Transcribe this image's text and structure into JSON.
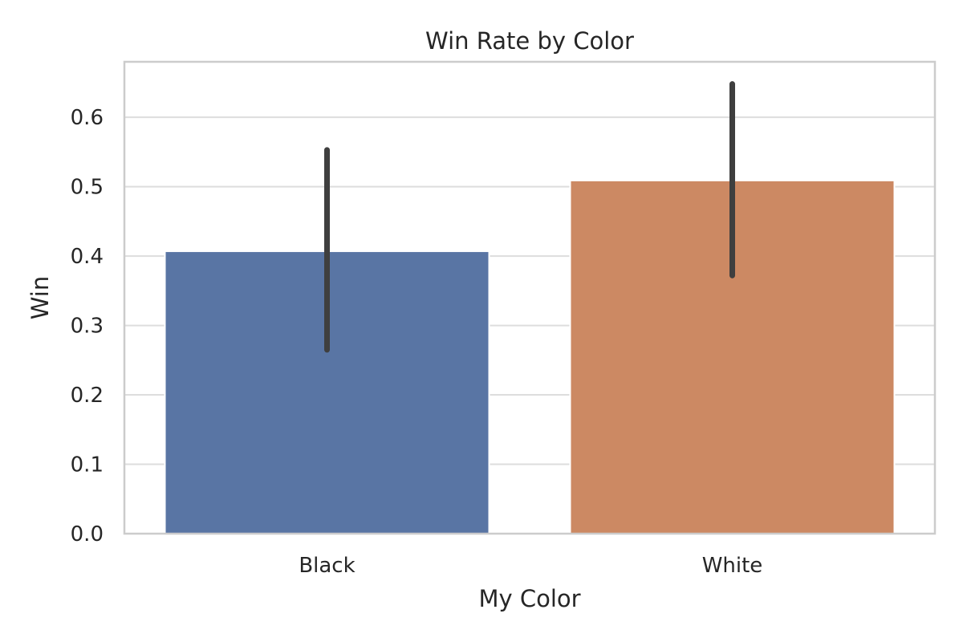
{
  "chart_data": {
    "type": "bar",
    "title": "Win Rate by Color",
    "xlabel": "My Color",
    "ylabel": "Win",
    "categories": [
      "Black",
      "White"
    ],
    "values": [
      0.407,
      0.509
    ],
    "error_bars": [
      {
        "low": 0.265,
        "high": 0.553
      },
      {
        "low": 0.372,
        "high": 0.648
      }
    ],
    "colors": [
      "#5975a4",
      "#cc8963"
    ],
    "ylim": [
      0,
      0.68
    ],
    "yticks": [
      0.0,
      0.1,
      0.2,
      0.3,
      0.4,
      0.5,
      0.6
    ],
    "ytick_labels": [
      "0.0",
      "0.1",
      "0.2",
      "0.3",
      "0.4",
      "0.5",
      "0.6"
    ],
    "grid": true,
    "legend": "none"
  }
}
